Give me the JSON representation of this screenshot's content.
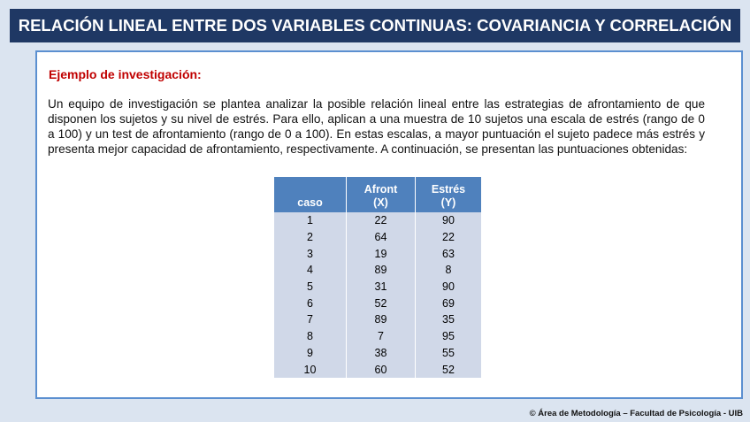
{
  "header": {
    "title": "RELACIÓN LINEAL ENTRE DOS VARIABLES CONTINUAS: COVARIANCIA Y CORRELACIÓN"
  },
  "example": {
    "heading": "Ejemplo de investigación:",
    "paragraph": "Un equipo de investigación se plantea analizar la posible relación lineal entre las estrategias de afrontamiento de que disponen los sujetos y su nivel de estrés. Para ello, aplican a una muestra de 10 sujetos una escala de estrés (rango de 0 a 100) y un test de afrontamiento (rango de 0 a 100). En estas escalas, a mayor puntuación el sujeto padece más estrés y presenta mejor capacidad de afrontamiento, respectivamente. A continuación, se presentan las puntuaciones obtenidas:"
  },
  "table": {
    "columns": [
      [
        "caso"
      ],
      [
        "Afront",
        "(X)"
      ],
      [
        "Estrés",
        "(Y)"
      ]
    ],
    "rows": [
      [
        1,
        22,
        90
      ],
      [
        2,
        64,
        22
      ],
      [
        3,
        19,
        63
      ],
      [
        4,
        89,
        8
      ],
      [
        5,
        31,
        90
      ],
      [
        6,
        52,
        69
      ],
      [
        7,
        89,
        35
      ],
      [
        8,
        7,
        95
      ],
      [
        9,
        38,
        55
      ],
      [
        10,
        60,
        52
      ]
    ]
  },
  "footer": {
    "text": "© Área de Metodología – Facultad de Psicología - UIB"
  }
}
